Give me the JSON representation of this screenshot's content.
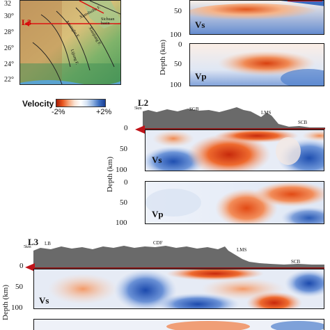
{
  "map": {
    "lat_ticks": [
      "32",
      "30°",
      "28°",
      "26°",
      "24°",
      "22°"
    ],
    "profile_label": "L3",
    "fault_labels": [
      "Anninghe F.",
      "Xiaojiang F.",
      "Xianshuihe F.",
      "Sichuan basin",
      "Lijiang F."
    ]
  },
  "legend": {
    "title": "Velocity",
    "min_label": "-2%",
    "max_label": "+2%"
  },
  "top_profile": {
    "depth_ticks": [
      "50",
      "100"
    ],
    "ylabel": "Depth (km)",
    "vs_label": "Vs",
    "vp_label": "Vp",
    "vp_ticks": [
      "0",
      "50",
      "100"
    ]
  },
  "l2": {
    "name": "L2",
    "elev_label": "5km",
    "places": [
      "SGB",
      "LMS",
      "SCB"
    ],
    "zero_tick": "0",
    "vs_ticks": [
      "50",
      "100"
    ],
    "vp_ticks": [
      "0",
      "50",
      "100"
    ],
    "ylabel": "Depth (km)",
    "vs_label": "Vs",
    "vp_label": "Vp"
  },
  "l3": {
    "name": "L3",
    "elev_label": "5km",
    "places": [
      "LB",
      "CDF",
      "LMS",
      "SCB"
    ],
    "zero_tick": "0",
    "vs_ticks": [
      "50",
      "100"
    ],
    "ylabel": "Depth (km)",
    "vs_label": "Vs"
  }
}
